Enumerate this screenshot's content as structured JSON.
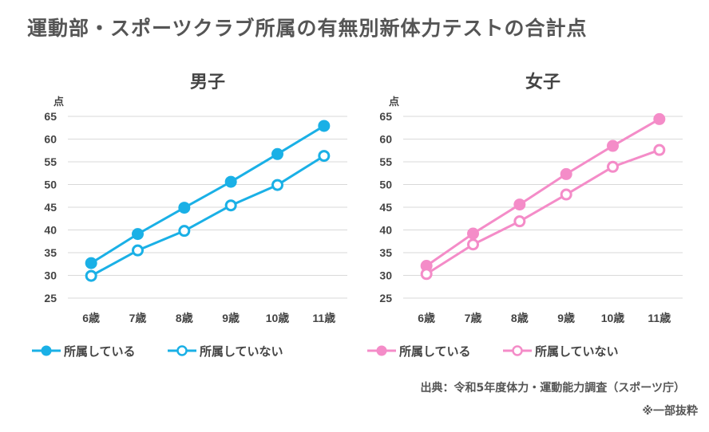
{
  "title": "運動部・スポーツクラブ所属の有無別新体力テストの合計点",
  "source": "出典：令和5年度体力・運動能力調査（スポーツ庁）",
  "note": "※一部抜粋",
  "chart_data": [
    {
      "type": "line",
      "title": "男子",
      "ylabel": "点",
      "xlabel": "",
      "categories": [
        "6歳",
        "7歳",
        "8歳",
        "9歳",
        "10歳",
        "11歳"
      ],
      "ylim": [
        25,
        65
      ],
      "yticks": [
        25,
        30,
        35,
        40,
        45,
        50,
        55,
        60,
        65
      ],
      "color": "#1ab0e6",
      "legend_position": "bottom",
      "series": [
        {
          "name": "所属している",
          "marker": "filled",
          "values": [
            32.7,
            39.1,
            44.9,
            50.6,
            56.7,
            62.9
          ]
        },
        {
          "name": "所属していない",
          "marker": "hollow",
          "values": [
            29.9,
            35.5,
            39.8,
            45.4,
            49.9,
            56.3
          ]
        }
      ]
    },
    {
      "type": "line",
      "title": "女子",
      "ylabel": "点",
      "xlabel": "",
      "categories": [
        "6歳",
        "7歳",
        "8歳",
        "9歳",
        "10歳",
        "11歳"
      ],
      "ylim": [
        25,
        65
      ],
      "yticks": [
        25,
        30,
        35,
        40,
        45,
        50,
        55,
        60,
        65
      ],
      "color": "#f48cc8",
      "legend_position": "bottom",
      "series": [
        {
          "name": "所属している",
          "marker": "filled",
          "values": [
            32.1,
            39.2,
            45.6,
            52.3,
            58.5,
            64.4
          ]
        },
        {
          "name": "所属していない",
          "marker": "hollow",
          "values": [
            30.3,
            36.8,
            41.9,
            47.8,
            53.9,
            57.6
          ]
        }
      ]
    }
  ]
}
